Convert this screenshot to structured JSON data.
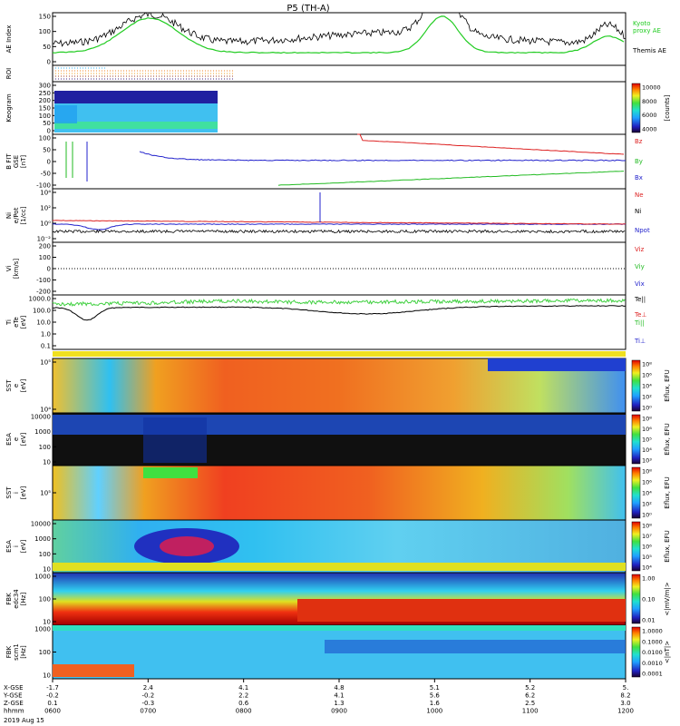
{
  "title": "P5 (TH-A)",
  "date": "2019 Aug 15",
  "colors": {
    "ae_kyoto": "#22cc22",
    "ae_themis": "#000000",
    "bz": "#dd2222",
    "by": "#22bb22",
    "bx": "#2222cc",
    "ne": "#dd2222",
    "ni": "#000000",
    "npot": "#2222cc"
  },
  "panels": {
    "ae": {
      "ylabel": "AE Index",
      "yticks": [
        "150",
        "100",
        "50",
        "0"
      ],
      "legend": [
        "Kyoto",
        "proxy AE",
        "Themis AE"
      ]
    },
    "roi": {
      "ylabel": "ROI"
    },
    "keogram": {
      "ylabel": "Keogram",
      "yticks": [
        "300",
        "250",
        "200",
        "150",
        "100",
        "50",
        "0"
      ],
      "cbar_ticks": [
        "10000",
        "8000",
        "6000",
        "4000"
      ],
      "cbar_label": "[counts]"
    },
    "bfit": {
      "ylabel": [
        "B FIT",
        "GSE",
        "[nT]"
      ],
      "yticks": [
        "100",
        "50",
        "0",
        "-50",
        "-100"
      ],
      "legend": [
        "Bz",
        "By",
        "Bx"
      ]
    },
    "density": {
      "ylabel": [
        "Ni",
        "e/Pot",
        "[1/cc]"
      ],
      "yticks": [
        "10⁴",
        "10²",
        "10⁰",
        "10⁻²"
      ],
      "legend": [
        "Ne",
        "Ni",
        "Npot"
      ]
    },
    "velocity": {
      "ylabel": [
        "Vi",
        "[km/s]"
      ],
      "yticks": [
        "200",
        "100",
        "0",
        "-100",
        "-200"
      ],
      "legend": [
        "Viz",
        "Viy",
        "Vix"
      ]
    },
    "temperature": {
      "ylabel": [
        "Ti",
        "eTe",
        "[eV]"
      ],
      "yticks": [
        "1000.0",
        "100.0",
        "10.0",
        "1.0",
        "0.1"
      ],
      "legend": [
        "Te||",
        "Te⊥",
        "Ti||",
        "Ti⊥"
      ]
    },
    "sst_e": {
      "ylabel": [
        "SST",
        "e",
        "[eV]"
      ],
      "yticks": [
        "10⁵",
        "10⁴"
      ],
      "cbar_ticks": [
        "10⁸",
        "10⁶",
        "10⁴",
        "10²",
        "10⁰"
      ],
      "cbar_label": "Eflux, EFU"
    },
    "esa_e": {
      "ylabel": [
        "ESA",
        "e",
        "[eV]"
      ],
      "yticks": [
        "10000",
        "1000",
        "100",
        "10"
      ],
      "cbar_ticks": [
        "10⁸",
        "10⁶",
        "10⁵",
        "10⁴",
        "10³"
      ],
      "cbar_label": "Eflux, EFU"
    },
    "sst_i": {
      "ylabel": [
        "SST",
        "i",
        "[eV]"
      ],
      "yticks": [
        "10⁵"
      ],
      "cbar_ticks": [
        "10⁸",
        "10⁶",
        "10⁴",
        "10²",
        "10⁰"
      ],
      "cbar_label": "Eflux, EFU"
    },
    "esa_i": {
      "ylabel": [
        "ESA",
        "i",
        "[eV]"
      ],
      "yticks": [
        "10000",
        "1000",
        "100",
        "10"
      ],
      "cbar_ticks": [
        "10⁸",
        "10⁷",
        "10⁶",
        "10⁵",
        "10⁴"
      ],
      "cbar_label": "Eflux, EFU"
    },
    "fbk_e": {
      "ylabel": [
        "FBK",
        "edc34",
        "[Hz]"
      ],
      "yticks": [
        "1000",
        "100",
        "10"
      ],
      "cbar_ticks": [
        "1.00",
        "0.10",
        "0.01"
      ],
      "cbar_label": "<|mV/m|>"
    },
    "fbk_b": {
      "ylabel": [
        "FBK",
        "scm1",
        "[Hz]"
      ],
      "yticks": [
        "1000",
        "100",
        "10"
      ],
      "cbar_ticks": [
        "1.0000",
        "0.1000",
        "0.0100",
        "0.0010",
        "0.0001"
      ],
      "cbar_label": "<|nT|>"
    }
  },
  "axis": {
    "row_labels": [
      "X-GSE",
      "Y-GSE",
      "Z-GSE",
      "hhmm"
    ],
    "ticks": [
      {
        "x": "-1.7",
        "y": "-0.2",
        "z": "0.1",
        "time": "0600"
      },
      {
        "x": "2.4",
        "y": "-0.2",
        "z": "-0.3",
        "time": "0700"
      },
      {
        "x": "4.1",
        "y": "2.2",
        "z": "0.6",
        "time": "0800"
      },
      {
        "x": "4.8",
        "y": "4.1",
        "z": "1.3",
        "time": "0900"
      },
      {
        "x": "5.1",
        "y": "5.6",
        "z": "1.6",
        "time": "1000"
      },
      {
        "x": "5.2",
        "y": "6.2",
        "z": "2.5",
        "time": "1100"
      },
      {
        "x": "5.",
        "y": "8.2",
        "z": "3.0",
        "time": "1200"
      }
    ]
  }
}
